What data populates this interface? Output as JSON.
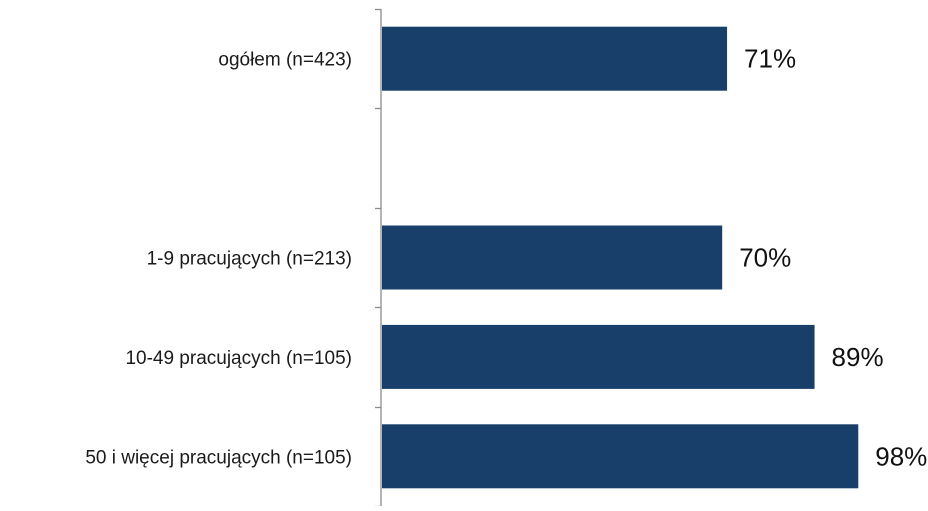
{
  "chart_data": {
    "type": "bar",
    "orientation": "horizontal",
    "title": "",
    "xlabel": "",
    "ylabel": "",
    "xlim": [
      0,
      100
    ],
    "grid": false,
    "legend": "none",
    "bar_color": "#173f69",
    "value_suffix": "%",
    "categories": [
      "ogółem  (n=423)",
      "",
      "1-9 pracujących (n=213)",
      "10-49 pracujących (n=105)",
      "50 i więcej pracujących (n=105)"
    ],
    "values": [
      71,
      null,
      70,
      89,
      98
    ],
    "data_labels": [
      "71%",
      "",
      "70%",
      "89%",
      "98%"
    ]
  }
}
